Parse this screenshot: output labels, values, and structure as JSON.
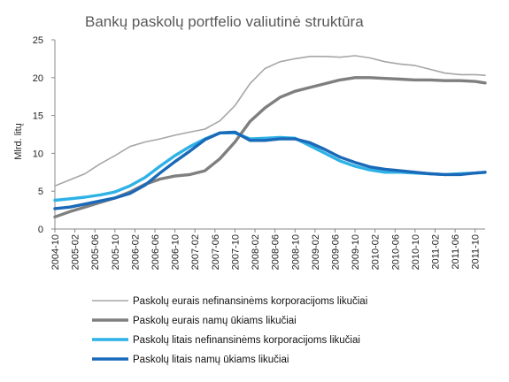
{
  "chart_data": {
    "type": "line",
    "title": "Bankų paskolų portfelio valiutinė struktūra",
    "xlabel": "",
    "ylabel": "Mlrd. litų",
    "ylim": [
      0,
      25
    ],
    "yticks": [
      "0",
      "5",
      "10",
      "15",
      "20",
      "25"
    ],
    "grid": false,
    "legend_position": "bottom",
    "x": [
      "2004-10",
      "2005-01",
      "2005-04",
      "2005-07",
      "2005-10",
      "2006-01",
      "2006-04",
      "2006-07",
      "2006-10",
      "2007-01",
      "2007-04",
      "2007-07",
      "2007-10",
      "2008-01",
      "2008-04",
      "2008-07",
      "2008-10",
      "2009-01",
      "2009-04",
      "2009-07",
      "2009-10",
      "2010-01",
      "2010-04",
      "2010-07",
      "2010-10",
      "2011-01",
      "2011-04",
      "2011-07",
      "2011-10",
      "2011-12"
    ],
    "xtick_labels": [
      "2004-10",
      "2005-02",
      "2005-06",
      "2005-10",
      "2006-02",
      "2006-06",
      "2006-10",
      "2007-02",
      "2007-06",
      "2007-10",
      "2008-02",
      "2008-06",
      "2008-10",
      "2009-02",
      "2009-06",
      "2009-10",
      "2010-02",
      "2010-06",
      "2010-10",
      "2011-02",
      "2011-06",
      "2011-10"
    ],
    "series": [
      {
        "name": "Paskolų eurais nefinansinėms korporacijoms likučiai",
        "color": "#a6a6a6",
        "values": [
          5.7,
          6.5,
          7.3,
          8.6,
          9.7,
          10.9,
          11.5,
          11.9,
          12.4,
          12.8,
          13.2,
          14.3,
          16.3,
          19.2,
          21.2,
          22.1,
          22.5,
          22.8,
          22.8,
          22.7,
          22.9,
          22.6,
          22.1,
          21.8,
          21.6,
          21.1,
          20.6,
          20.4,
          20.4,
          20.3
        ]
      },
      {
        "name": "Paskolų eurais namų ūkiams likučiai",
        "color": "#7f7f7f",
        "values": [
          1.6,
          2.3,
          2.9,
          3.5,
          4.1,
          4.9,
          5.9,
          6.6,
          7.0,
          7.2,
          7.7,
          9.3,
          11.5,
          14.2,
          16.0,
          17.4,
          18.2,
          18.7,
          19.2,
          19.7,
          20.0,
          20.0,
          19.9,
          19.8,
          19.7,
          19.7,
          19.6,
          19.6,
          19.5,
          19.3
        ]
      },
      {
        "name": "Paskolų litais nefinansinėms korporacijoms likučiai",
        "color": "#2eb2e6",
        "values": [
          3.8,
          4.0,
          4.2,
          4.5,
          4.9,
          5.7,
          6.8,
          8.3,
          9.7,
          10.9,
          11.9,
          12.7,
          12.7,
          11.9,
          12.0,
          12.1,
          12.0,
          11.0,
          10.0,
          9.0,
          8.3,
          7.8,
          7.5,
          7.5,
          7.4,
          7.3,
          7.2,
          7.3,
          7.4,
          7.5
        ]
      },
      {
        "name": "Paskolų litais namų ūkiams likučiai",
        "color": "#1a69b8",
        "values": [
          2.7,
          2.9,
          3.3,
          3.7,
          4.1,
          4.7,
          5.8,
          7.4,
          8.9,
          10.3,
          11.8,
          12.7,
          12.8,
          11.7,
          11.7,
          11.9,
          11.9,
          11.4,
          10.5,
          9.5,
          8.8,
          8.2,
          7.9,
          7.7,
          7.5,
          7.3,
          7.2,
          7.2,
          7.4,
          7.5
        ]
      }
    ]
  }
}
